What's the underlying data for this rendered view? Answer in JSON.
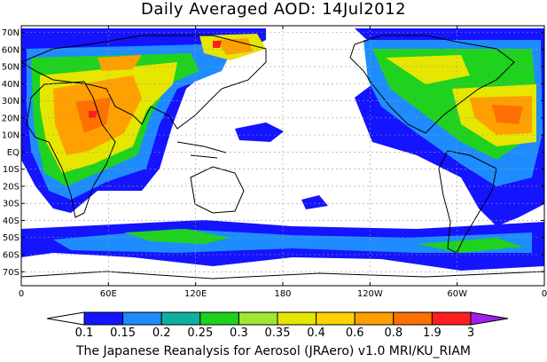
{
  "title": "Daily Averaged AOD: 14Jul2012",
  "footer": "The Japanese Reanalysis for Aerosol (JRAero) v1.0 MRI/KU_RIAM",
  "map": {
    "lat_ticks": [
      "70N",
      "60N",
      "50N",
      "40N",
      "30N",
      "20N",
      "10N",
      "EQ",
      "10S",
      "20S",
      "30S",
      "40S",
      "50S",
      "60S",
      "70S"
    ],
    "lon_ticks": [
      "0",
      "60E",
      "120E",
      "180",
      "120W",
      "60W",
      "0"
    ]
  },
  "colorbar": {
    "labels": [
      "0.1",
      "0.15",
      "0.2",
      "0.25",
      "0.3",
      "0.35",
      "0.4",
      "0.6",
      "0.8",
      "1.9",
      "3"
    ],
    "colors": [
      "#ffffff",
      "#1414ff",
      "#1e8cff",
      "#10b0a0",
      "#1ed21e",
      "#a0e632",
      "#e6e600",
      "#ffd200",
      "#ffa000",
      "#ff7000",
      "#ff1e1e",
      "#a020f0"
    ]
  }
}
